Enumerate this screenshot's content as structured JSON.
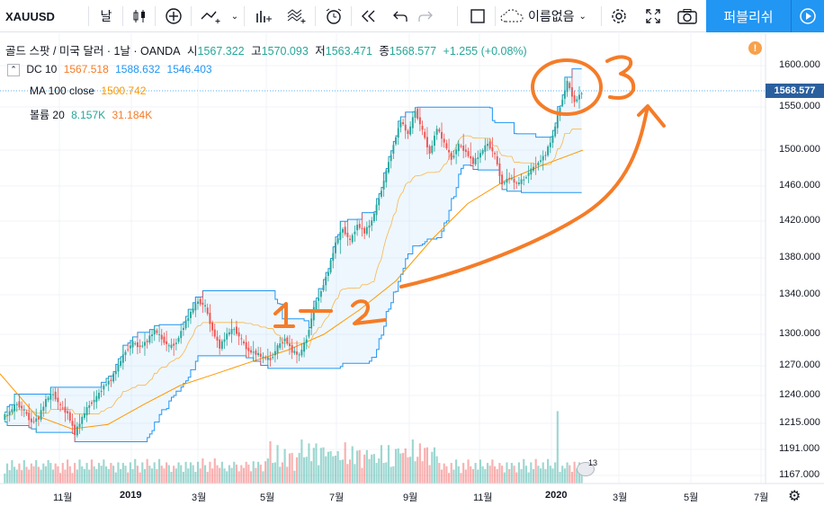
{
  "toolbar": {
    "symbol": "XAUUSD",
    "interval": "날",
    "indicator_menu_label": "이름없음",
    "publish_label": "퍼블리쉬"
  },
  "legend": {
    "main": {
      "title": "골드 스팟 / 미국 달러 · 1날 · OANDA",
      "open_label": "시",
      "open": "1567.322",
      "high_label": "고",
      "high": "1570.093",
      "low_label": "저",
      "low": "1563.471",
      "close_label": "종",
      "close": "1568.577",
      "change": "+1.255 (+0.08%)"
    },
    "dc": {
      "name": "DC 10",
      "v1": "1567.518",
      "v2": "1588.632",
      "v3": "1546.403"
    },
    "ma": {
      "name": "MA 100 close",
      "v1": "1500.742"
    },
    "volume": {
      "name": "볼륨 20",
      "v1": "8.157K",
      "v2": "31.184K"
    }
  },
  "price_axis": {
    "current": "1568.577",
    "ticks": [
      "1600.000",
      "1550.000",
      "1500.000",
      "1460.000",
      "1420.000",
      "1380.000",
      "1340.000",
      "1300.000",
      "1270.000",
      "1240.000",
      "1215.000",
      "1191.000",
      "1167.000"
    ]
  },
  "time_axis": {
    "ticks": [
      "11월",
      "2019",
      "3월",
      "5월",
      "7월",
      "9월",
      "11월",
      "2020",
      "3월",
      "5월",
      "7월"
    ]
  },
  "annotations": {
    "label1": "1",
    "label2": "2",
    "label3": "3",
    "volume_badge": "13"
  },
  "colors": {
    "up": "#26a69a",
    "down": "#ef5350",
    "donchian": "#2196f3",
    "ma": "#ff9800",
    "annotation": "#f57c28",
    "accent": "#2196f3"
  },
  "chart_data": {
    "type": "candlestick",
    "ohlc": [
      [
        1220,
        1230,
        1212,
        1225
      ],
      [
        1225,
        1238,
        1220,
        1233
      ],
      [
        1233,
        1236,
        1222,
        1226
      ],
      [
        1226,
        1232,
        1212,
        1216
      ],
      [
        1216,
        1224,
        1208,
        1220
      ],
      [
        1220,
        1240,
        1218,
        1236
      ],
      [
        1236,
        1246,
        1230,
        1242
      ],
      [
        1242,
        1247,
        1226,
        1230
      ],
      [
        1230,
        1238,
        1218,
        1224
      ],
      [
        1224,
        1228,
        1202,
        1206
      ],
      [
        1206,
        1224,
        1203,
        1220
      ],
      [
        1220,
        1236,
        1217,
        1232
      ],
      [
        1232,
        1244,
        1228,
        1238
      ],
      [
        1238,
        1254,
        1236,
        1250
      ],
      [
        1250,
        1260,
        1246,
        1256
      ],
      [
        1256,
        1274,
        1252,
        1270
      ],
      [
        1270,
        1288,
        1266,
        1284
      ],
      [
        1284,
        1296,
        1280,
        1292
      ],
      [
        1292,
        1300,
        1284,
        1288
      ],
      [
        1288,
        1298,
        1280,
        1294
      ],
      [
        1294,
        1308,
        1290,
        1304
      ],
      [
        1304,
        1312,
        1292,
        1296
      ],
      [
        1296,
        1302,
        1284,
        1288
      ],
      [
        1288,
        1296,
        1280,
        1292
      ],
      [
        1292,
        1312,
        1290,
        1308
      ],
      [
        1308,
        1326,
        1304,
        1322
      ],
      [
        1322,
        1340,
        1318,
        1334
      ],
      [
        1334,
        1346,
        1322,
        1328
      ],
      [
        1328,
        1332,
        1298,
        1304
      ],
      [
        1304,
        1310,
        1284,
        1288
      ],
      [
        1288,
        1304,
        1284,
        1300
      ],
      [
        1300,
        1312,
        1294,
        1306
      ],
      [
        1306,
        1310,
        1288,
        1294
      ],
      [
        1294,
        1298,
        1278,
        1284
      ],
      [
        1284,
        1290,
        1276,
        1282
      ],
      [
        1282,
        1288,
        1272,
        1278
      ],
      [
        1278,
        1284,
        1270,
        1276
      ],
      [
        1276,
        1292,
        1272,
        1288
      ],
      [
        1288,
        1300,
        1284,
        1296
      ],
      [
        1296,
        1302,
        1278,
        1284
      ],
      [
        1284,
        1290,
        1274,
        1280
      ],
      [
        1280,
        1300,
        1278,
        1296
      ],
      [
        1296,
        1330,
        1292,
        1326
      ],
      [
        1326,
        1350,
        1320,
        1344
      ],
      [
        1344,
        1370,
        1340,
        1366
      ],
      [
        1366,
        1400,
        1360,
        1396
      ],
      [
        1396,
        1420,
        1380,
        1412
      ],
      [
        1412,
        1430,
        1390,
        1398
      ],
      [
        1398,
        1420,
        1392,
        1416
      ],
      [
        1416,
        1432,
        1402,
        1408
      ],
      [
        1408,
        1426,
        1398,
        1420
      ],
      [
        1420,
        1450,
        1416,
        1446
      ],
      [
        1446,
        1480,
        1440,
        1476
      ],
      [
        1476,
        1510,
        1470,
        1506
      ],
      [
        1506,
        1540,
        1500,
        1534
      ],
      [
        1534,
        1546,
        1510,
        1518
      ],
      [
        1518,
        1552,
        1514,
        1546
      ],
      [
        1546,
        1556,
        1516,
        1522
      ],
      [
        1522,
        1530,
        1490,
        1496
      ],
      [
        1496,
        1530,
        1492,
        1526
      ],
      [
        1526,
        1536,
        1500,
        1508
      ],
      [
        1508,
        1518,
        1484,
        1490
      ],
      [
        1490,
        1512,
        1480,
        1506
      ],
      [
        1506,
        1520,
        1492,
        1498
      ],
      [
        1498,
        1512,
        1480,
        1486
      ],
      [
        1486,
        1504,
        1474,
        1496
      ],
      [
        1496,
        1514,
        1488,
        1508
      ],
      [
        1508,
        1516,
        1490,
        1494
      ],
      [
        1494,
        1500,
        1456,
        1462
      ],
      [
        1462,
        1480,
        1454,
        1470
      ],
      [
        1470,
        1478,
        1456,
        1462
      ],
      [
        1462,
        1474,
        1454,
        1468
      ],
      [
        1468,
        1484,
        1462,
        1478
      ],
      [
        1478,
        1492,
        1470,
        1486
      ],
      [
        1486,
        1502,
        1476,
        1496
      ],
      [
        1496,
        1520,
        1492,
        1516
      ],
      [
        1516,
        1556,
        1512,
        1550
      ],
      [
        1550,
        1600,
        1546,
        1580
      ],
      [
        1580,
        1606,
        1550,
        1556
      ],
      [
        1556,
        1574,
        1546,
        1568
      ]
    ],
    "ma_label": "MA 100 close",
    "dc_label": "DC 10"
  }
}
